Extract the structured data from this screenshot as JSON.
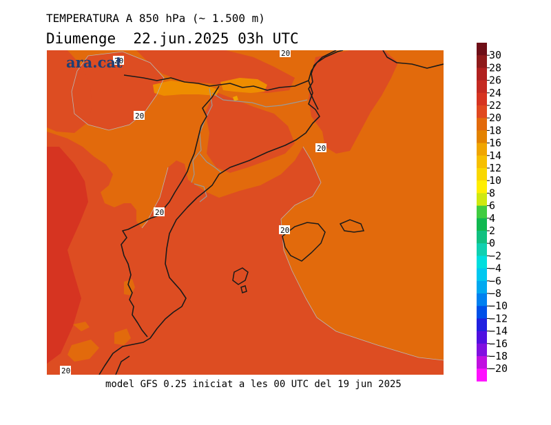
{
  "header": {
    "title": "TEMPERATURA A 850 hPa (~ 1.500 m)",
    "subtitle": "Diumenge  22.jun.2025 03h UTC"
  },
  "footer": {
    "text": "model GFS 0.25 iniciat a les 00 UTC del 19 jun 2025"
  },
  "logo": {
    "text": "ara.cat",
    "color": "#1f3f75"
  },
  "map": {
    "contour_label": "20",
    "colors": {
      "base": "#dd4d22",
      "band_16_18": "#e26a0c",
      "band_14_16": "#ee8d00",
      "band_22_24": "#d63421",
      "coast": "#1a1a1a",
      "border": "#9a9a9a"
    }
  },
  "legend": {
    "levels": [
      "30",
      "28",
      "26",
      "24",
      "22",
      "20",
      "18",
      "16",
      "14",
      "12",
      "10",
      "8",
      "6",
      "4",
      "2",
      "0",
      "−2",
      "−4",
      "−6",
      "−8",
      "−10",
      "−12",
      "−14",
      "−16",
      "−18",
      "−20"
    ],
    "colors": [
      "#6e0f17",
      "#8e1a1a",
      "#b0201f",
      "#c42a22",
      "#d63421",
      "#e0481f",
      "#e26a0c",
      "#e38200",
      "#f0a500",
      "#f6bf00",
      "#f9d700",
      "#ffee00",
      "#cfe80f",
      "#40cc40",
      "#10b850",
      "#10c080",
      "#10d0b0",
      "#00dede",
      "#00c8f0",
      "#00a8f0",
      "#0080f0",
      "#0050e8",
      "#2020e0",
      "#5010e0",
      "#8010e0",
      "#c010e0",
      "#ff10ff"
    ]
  }
}
